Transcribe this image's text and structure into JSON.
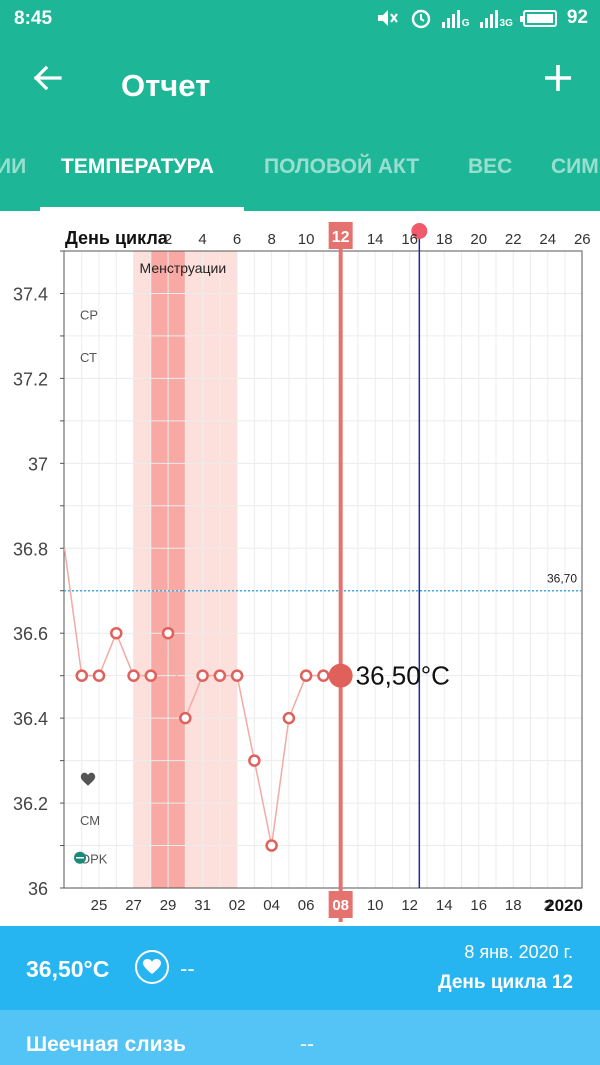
{
  "status_bar": {
    "time": "8:45",
    "network_g": "G",
    "network_3g": "3G",
    "battery_percent": "92"
  },
  "app_bar": {
    "title": "Отчет",
    "back_icon": "arrow-left-icon",
    "add_icon": "plus-icon"
  },
  "tabs": [
    {
      "label": "ИИ",
      "active": false
    },
    {
      "label": "ТЕМПЕРАТУРА",
      "active": true
    },
    {
      "label": "ПОЛОВОЙ АКТ",
      "active": false
    },
    {
      "label": "ВЕС",
      "active": false
    },
    {
      "label": "СИМ",
      "active": false
    }
  ],
  "colors": {
    "accent": "#1db797",
    "summary_bg": "#27b5f2",
    "mucus_bg": "#53c4f5",
    "line": "#e4736f",
    "cover_line": "#3fa9e0",
    "ovulation_line": "#1f2a9a",
    "menstruation_dark": "#f8a9a4",
    "menstruation_light": "#fde0dc"
  },
  "chart_data": {
    "type": "line",
    "top_axis_label": "День цикла",
    "cycle_days": [
      "2",
      "4",
      "6",
      "8",
      "10",
      "12",
      "14",
      "16",
      "18",
      "20",
      "22",
      "24",
      "26"
    ],
    "selected_cycle_day": "12",
    "bottom_dates": [
      "25",
      "27",
      "29",
      "31",
      "02",
      "04",
      "06",
      "08",
      "10",
      "12",
      "14",
      "16",
      "18",
      "2"
    ],
    "selected_date": "08",
    "year_label": "2020",
    "y_ticks": [
      "36",
      "36.2",
      "36.4",
      "36.6",
      "36.8",
      "37",
      "37.2",
      "37.4"
    ],
    "ylim": [
      36.0,
      37.5
    ],
    "band_label": "Менструации",
    "left_markers": [
      "СР",
      "СТ"
    ],
    "bottom_markers": [
      "СМ",
      "OPK"
    ],
    "coverline_value": 36.7,
    "coverline_label": "36,70",
    "highlight_label": "36,50°C",
    "series": [
      {
        "x": [
          23,
          24,
          25,
          26,
          27,
          28,
          29,
          30,
          31,
          1,
          2,
          3,
          4,
          5,
          6,
          7,
          8
        ],
        "values": [
          36.8,
          36.5,
          36.5,
          36.6,
          36.5,
          36.5,
          36.6,
          36.4,
          36.5,
          36.5,
          36.5,
          36.3,
          36.1,
          36.4,
          36.5,
          36.5,
          36.5
        ]
      }
    ]
  },
  "summary": {
    "temperature": "36,50°C",
    "heart_icon": "heart-icon",
    "intercourse_value": "--",
    "date": "8 янв. 2020 г.",
    "cycle_day": "День цикла 12"
  },
  "mucus": {
    "label": "Шеечная слизь",
    "value": "--"
  }
}
